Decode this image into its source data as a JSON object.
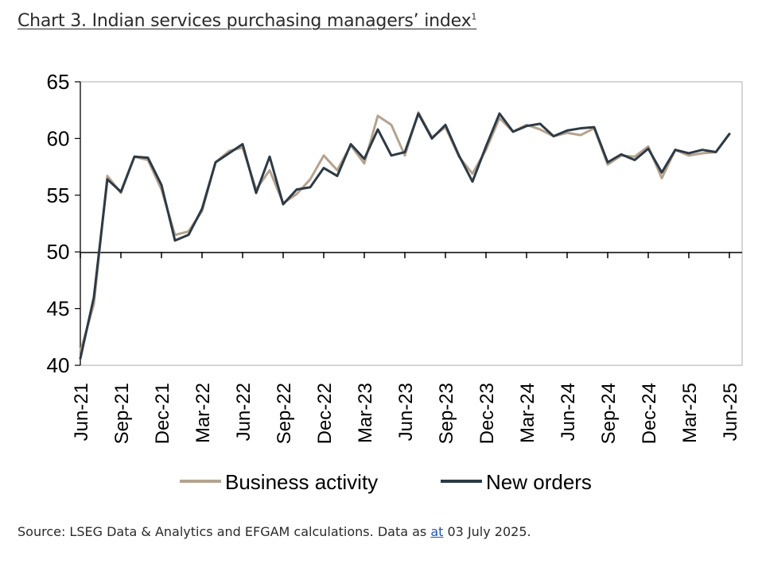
{
  "title": {
    "text": "Chart 3. Indian services purchasing managers’ index",
    "sup": "1"
  },
  "source": {
    "prefix": "Source: LSEG Data & Analytics and EFGAM calculations. Data as ",
    "link": "at",
    "suffix": " 03 July 2025."
  },
  "chart_data": {
    "type": "line",
    "title": "Chart 3. Indian services purchasing managers’ index",
    "xlabel": "",
    "ylabel": "",
    "ylim": [
      40,
      65
    ],
    "yticks": [
      40,
      45,
      50,
      55,
      60,
      65
    ],
    "x_tick_labels": [
      "Jun-21",
      "Sep-21",
      "Dec-21",
      "Mar-22",
      "Jun-22",
      "Sep-22",
      "Dec-22",
      "Mar-23",
      "Jun-23",
      "Sep-23",
      "Dec-23",
      "Mar-24",
      "Jun-24",
      "Sep-24",
      "Dec-24",
      "Mar-25",
      "Jun-25"
    ],
    "x": [
      "Jun-21",
      "Jul-21",
      "Aug-21",
      "Sep-21",
      "Oct-21",
      "Nov-21",
      "Dec-21",
      "Jan-22",
      "Feb-22",
      "Mar-22",
      "Apr-22",
      "May-22",
      "Jun-22",
      "Jul-22",
      "Aug-22",
      "Sep-22",
      "Oct-22",
      "Nov-22",
      "Dec-22",
      "Jan-23",
      "Feb-23",
      "Mar-23",
      "Apr-23",
      "May-23",
      "Jun-23",
      "Jul-23",
      "Aug-23",
      "Sep-23",
      "Oct-23",
      "Nov-23",
      "Dec-23",
      "Jan-24",
      "Feb-24",
      "Mar-24",
      "Apr-24",
      "May-24",
      "Jun-24",
      "Jul-24",
      "Aug-24",
      "Sep-24",
      "Oct-24",
      "Nov-24",
      "Dec-24",
      "Jan-25",
      "Feb-25",
      "Mar-25",
      "Apr-25",
      "May-25",
      "Jun-25"
    ],
    "series": [
      {
        "name": "Business activity",
        "color": "#b5a38f",
        "values": [
          41.2,
          45.4,
          56.7,
          55.2,
          58.4,
          58.1,
          55.5,
          51.5,
          51.8,
          53.6,
          57.9,
          58.9,
          59.2,
          55.5,
          57.2,
          54.3,
          55.1,
          56.4,
          58.5,
          57.2,
          59.4,
          57.8,
          62.0,
          61.2,
          58.5,
          62.3,
          60.1,
          61.0,
          58.4,
          56.9,
          59.0,
          61.8,
          60.6,
          61.2,
          60.8,
          60.2,
          60.5,
          60.3,
          60.9,
          57.7,
          58.5,
          58.4,
          59.3,
          56.5,
          59.0,
          58.5,
          58.7,
          58.8,
          60.4
        ]
      },
      {
        "name": "New orders",
        "color": "#2d3a45",
        "values": [
          40.6,
          46.0,
          56.4,
          55.3,
          58.4,
          58.3,
          55.9,
          51.0,
          51.5,
          53.8,
          57.9,
          58.7,
          59.5,
          55.2,
          58.4,
          54.2,
          55.5,
          55.7,
          57.4,
          56.7,
          59.5,
          58.2,
          60.8,
          58.5,
          58.8,
          62.2,
          60.0,
          61.2,
          58.5,
          56.2,
          59.3,
          62.2,
          60.6,
          61.1,
          61.3,
          60.2,
          60.7,
          60.9,
          61.0,
          57.9,
          58.6,
          58.1,
          59.1,
          57.0,
          59.0,
          58.7,
          59.0,
          58.8,
          60.4
        ]
      }
    ],
    "legend": {
      "position": "bottom"
    },
    "grid": false
  }
}
